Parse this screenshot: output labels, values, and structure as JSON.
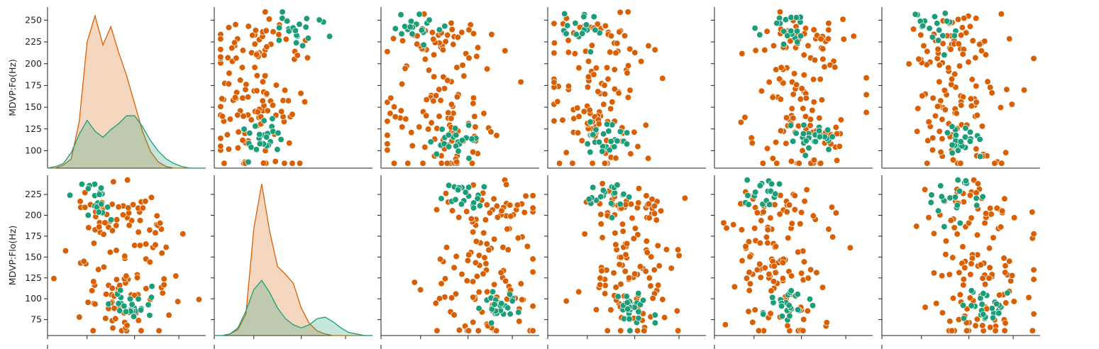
{
  "chart_data": {
    "type": "pairplot",
    "colors": {
      "group_a": "#1b9e77",
      "group_b": "#d95f02"
    },
    "rows": [
      {
        "ylabel": "MDVP:Fo(Hz)",
        "ylim": [
          80,
          265
        ],
        "yticks": [
          100,
          125,
          150,
          175,
          200,
          225,
          250
        ]
      },
      {
        "ylabel": "MDVP:Flo(Hz)",
        "ylim": [
          56,
          248
        ],
        "yticks": [
          75,
          100,
          125,
          150,
          175,
          200,
          225
        ]
      }
    ],
    "panels": [
      {
        "row": 0,
        "col": 0,
        "type": "kde",
        "x": [
          0.0,
          0.05,
          0.1,
          0.15,
          0.2,
          0.25,
          0.3,
          0.35,
          0.4,
          0.45,
          0.5,
          0.55,
          0.6,
          0.65,
          0.7,
          0.75,
          0.8,
          0.85,
          0.9,
          0.95,
          1.0
        ],
        "density_b": [
          0.0,
          0.0,
          0.02,
          0.06,
          0.3,
          0.82,
          0.99,
          0.8,
          0.92,
          0.75,
          0.6,
          0.42,
          0.24,
          0.11,
          0.04,
          0.01,
          0.0,
          0.0,
          0.0,
          0.0,
          0.0
        ],
        "density_a": [
          0.0,
          0.01,
          0.03,
          0.1,
          0.22,
          0.31,
          0.24,
          0.2,
          0.25,
          0.29,
          0.34,
          0.34,
          0.27,
          0.18,
          0.11,
          0.06,
          0.03,
          0.01,
          0.0,
          0.0,
          0.0
        ]
      },
      {
        "row": 1,
        "col": 1,
        "type": "kde",
        "x": [
          0.0,
          0.05,
          0.1,
          0.15,
          0.2,
          0.25,
          0.3,
          0.35,
          0.4,
          0.45,
          0.5,
          0.55,
          0.6,
          0.65,
          0.7,
          0.75,
          0.8,
          0.85,
          0.9,
          0.95,
          1.0
        ],
        "density_b": [
          0.0,
          0.0,
          0.01,
          0.04,
          0.14,
          0.7,
          0.99,
          0.68,
          0.45,
          0.4,
          0.34,
          0.18,
          0.08,
          0.03,
          0.01,
          0.0,
          0.0,
          0.0,
          0.0,
          0.0,
          0.0
        ],
        "density_a": [
          0.0,
          0.0,
          0.01,
          0.05,
          0.16,
          0.3,
          0.36,
          0.28,
          0.18,
          0.11,
          0.07,
          0.05,
          0.07,
          0.11,
          0.12,
          0.09,
          0.05,
          0.02,
          0.01,
          0.0,
          0.0
        ]
      }
    ],
    "seed": 7
  }
}
